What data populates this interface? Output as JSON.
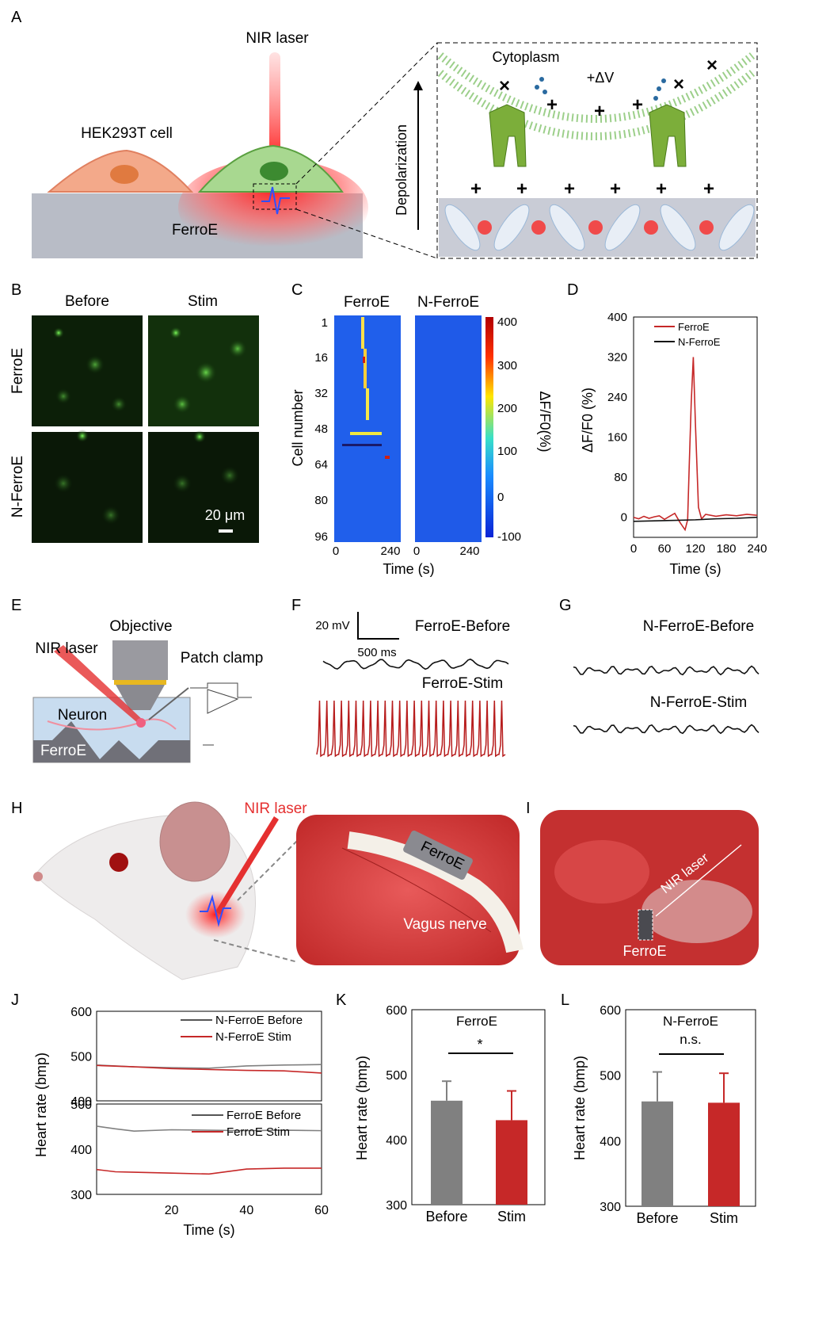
{
  "panels": {
    "A": "A",
    "B": "B",
    "C": "C",
    "D": "D",
    "E": "E",
    "F": "F",
    "G": "G",
    "H": "H",
    "I": "I",
    "J": "J",
    "K": "K",
    "L": "L"
  },
  "a": {
    "nir": "NIR laser",
    "hek": "HEK293T cell",
    "ferroe": "FerroE",
    "cyto": "Cytoplasm",
    "dv": "+ΔV",
    "depol": "Depolarization"
  },
  "b": {
    "before": "Before",
    "stim": "Stim",
    "row1": "FerroE",
    "row2": "N-FerroE",
    "scale": "20 μm"
  },
  "c": {
    "t1": "FerroE",
    "t2": "N-FerroE",
    "ylabel": "Cell number",
    "xlabel": "Time (s)",
    "yticks": [
      "1",
      "16",
      "32",
      "48",
      "64",
      "80",
      "96"
    ],
    "xticks": [
      "0",
      "240",
      "0",
      "240"
    ],
    "cticks": [
      "400",
      "300",
      "200",
      "100",
      "0",
      "-100"
    ],
    "cbar": "ΔF/F0(%)"
  },
  "e": {
    "obj": "Objective",
    "nir": "NIR laser",
    "patch": "Patch clamp",
    "neuron": "Neuron",
    "ferroe": "FerroE"
  },
  "f": {
    "sv": "20 mV",
    "sh": "500 ms",
    "l1": "FerroE-Before",
    "l2": "FerroE-Stim"
  },
  "g": {
    "l1": "N-FerroE-Before",
    "l2": "N-FerroE-Stim"
  },
  "h": {
    "nir": "NIR laser",
    "ferroe": "FerroE",
    "vagus": "Vagus nerve"
  },
  "i": {
    "nir": "NIR laser",
    "ferroe": "FerroE"
  },
  "colors": {
    "ferroe": "#c62828",
    "nferroe": "#111111",
    "grey": "#808080",
    "heat_low": "#0a23d6",
    "heat_high": "#b10000"
  },
  "chart_data": [
    {
      "type": "line",
      "panel": "D",
      "xlabel": "Time (s)",
      "ylabel": "ΔF/F0 (%)",
      "xlim": [
        0,
        240
      ],
      "ylim": [
        -40,
        400
      ],
      "xticks": [
        "0",
        "60",
        "120",
        "180",
        "240"
      ],
      "yticks": [
        "400",
        "320",
        "240",
        "160",
        "80",
        "0"
      ],
      "legend": "top-right",
      "series": [
        {
          "name": "FerroE",
          "x": [
            0,
            10,
            20,
            30,
            40,
            50,
            60,
            70,
            80,
            90,
            100,
            105,
            108,
            112,
            116,
            120,
            126,
            132,
            140,
            160,
            180,
            200,
            220,
            240
          ],
          "values": [
            0,
            -3,
            2,
            -2,
            1,
            3,
            -4,
            2,
            8,
            -10,
            -25,
            -5,
            100,
            230,
            320,
            190,
            20,
            -3,
            6,
            2,
            5,
            3,
            6,
            4
          ]
        },
        {
          "name": "N-FerroE",
          "x": [
            0,
            40,
            80,
            120,
            160,
            200,
            240
          ],
          "values": [
            -8,
            -7,
            -6,
            -5,
            -3,
            -2,
            0
          ]
        }
      ]
    },
    {
      "type": "line",
      "panel": "J-top",
      "ylim": [
        400,
        600
      ],
      "yticks": [
        "600",
        "500",
        "400"
      ],
      "legend": "top-right",
      "series": [
        {
          "name": "N-FerroE Before",
          "x": [
            0,
            10,
            20,
            30,
            40,
            50,
            60
          ],
          "values": [
            480,
            476,
            474,
            473,
            478,
            480,
            481
          ]
        },
        {
          "name": "N-FerroE Stim",
          "x": [
            0,
            10,
            20,
            30,
            40,
            50,
            60
          ],
          "values": [
            479,
            476,
            472,
            470,
            468,
            467,
            462
          ]
        }
      ]
    },
    {
      "type": "line",
      "panel": "J-bottom",
      "xlabel": "Time (s)",
      "ylabel": "Heart rate (bmp)",
      "xlim": [
        0,
        60
      ],
      "ylim": [
        300,
        500
      ],
      "xticks": [
        "20",
        "40",
        "60"
      ],
      "yticks": [
        "500",
        "400",
        "300"
      ],
      "legend": "top-right",
      "series": [
        {
          "name": "FerroE Before",
          "x": [
            0,
            5,
            10,
            20,
            30,
            40,
            50,
            60
          ],
          "values": [
            451,
            445,
            440,
            443,
            442,
            441,
            442,
            441
          ]
        },
        {
          "name": "FerroE Stim",
          "x": [
            0,
            5,
            10,
            20,
            30,
            40,
            50,
            60
          ],
          "values": [
            355,
            350,
            349,
            347,
            345,
            356,
            358,
            358
          ]
        }
      ]
    },
    {
      "type": "bar",
      "panel": "K",
      "title": "FerroE",
      "sig": "*",
      "categories": [
        "Before",
        "Stim"
      ],
      "values": [
        460,
        430
      ],
      "errors": [
        30,
        45
      ],
      "ylabel": "Heart rate (bmp)",
      "ylim": [
        300,
        600
      ],
      "yticks": [
        "600",
        "500",
        "400",
        "300"
      ]
    },
    {
      "type": "bar",
      "panel": "L",
      "title": "N-FerroE",
      "sig": "n.s.",
      "categories": [
        "Before",
        "Stim"
      ],
      "values": [
        460,
        458
      ],
      "errors": [
        45,
        45
      ],
      "ylabel": "Heart rate (bmp)",
      "ylim": [
        300,
        600
      ],
      "yticks": [
        "600",
        "500",
        "400",
        "300"
      ]
    }
  ]
}
